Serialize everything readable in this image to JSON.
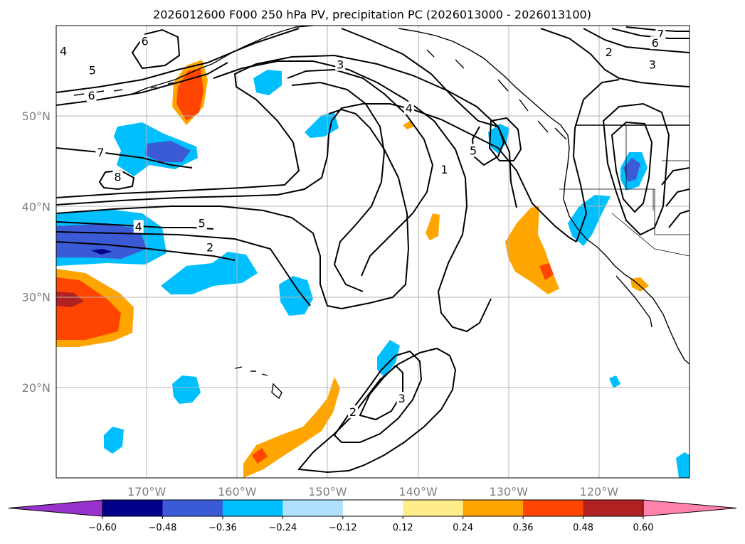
{
  "title": "2026012600 F000 250 hPa PV, precipitation PC (2026013000 - 2026013100)",
  "map": {
    "lon_range": [
      -180,
      -110
    ],
    "lat_range": [
      10,
      60
    ],
    "lon_ticks": [
      {
        "value": -170,
        "label": "170°W"
      },
      {
        "value": -160,
        "label": "160°W"
      },
      {
        "value": -150,
        "label": "150°W"
      },
      {
        "value": -140,
        "label": "140°W"
      },
      {
        "value": -130,
        "label": "130°W"
      },
      {
        "value": -120,
        "label": "120°W"
      }
    ],
    "lat_ticks": [
      {
        "value": 20,
        "label": "20°N"
      },
      {
        "value": 30,
        "label": "30°N"
      },
      {
        "value": 40,
        "label": "40°N"
      },
      {
        "value": 50,
        "label": "50°N"
      }
    ],
    "grid": true,
    "background": "#ffffff"
  },
  "colorbar": {
    "colors": [
      "#9932cc",
      "#00008b",
      "#3b5bd6",
      "#00bfff",
      "#b0e2ff",
      "#ffffff",
      "#ffec8b",
      "#ffa500",
      "#ff4500",
      "#b22222",
      "#ff82ab"
    ],
    "labels": [
      "−0.60",
      "−0.48",
      "−0.36",
      "−0.24",
      "−0.12",
      "0.12",
      "0.24",
      "0.36",
      "0.48",
      "0.60"
    ],
    "extend": "both"
  },
  "contour_labels": [
    {
      "text": "4",
      "lon": -179.2,
      "lat": 57.2
    },
    {
      "text": "6",
      "lon": -170.2,
      "lat": 58.3
    },
    {
      "text": "5",
      "lon": -176.0,
      "lat": 55.1
    },
    {
      "text": "6",
      "lon": -176.1,
      "lat": 52.3
    },
    {
      "text": "7",
      "lon": -175.1,
      "lat": 46.0
    },
    {
      "text": "8",
      "lon": -173.2,
      "lat": 43.3
    },
    {
      "text": "4",
      "lon": -170.9,
      "lat": 37.8
    },
    {
      "text": "5",
      "lon": -163.9,
      "lat": 38.2
    },
    {
      "text": "2",
      "lon": -163.0,
      "lat": 35.5
    },
    {
      "text": "3",
      "lon": -148.6,
      "lat": 55.7
    },
    {
      "text": "4",
      "lon": -141.0,
      "lat": 50.9
    },
    {
      "text": "5",
      "lon": -133.9,
      "lat": 46.2
    },
    {
      "text": "1",
      "lon": -137.1,
      "lat": 44.1
    },
    {
      "text": "2",
      "lon": -147.2,
      "lat": 17.3
    },
    {
      "text": "3",
      "lon": -141.8,
      "lat": 18.8
    },
    {
      "text": "7",
      "lon": -113.2,
      "lat": 59.1
    },
    {
      "text": "6",
      "lon": -113.8,
      "lat": 58.1
    },
    {
      "text": "2",
      "lon": -118.9,
      "lat": 57.1
    },
    {
      "text": "3",
      "lon": -114.1,
      "lat": 55.7
    }
  ]
}
